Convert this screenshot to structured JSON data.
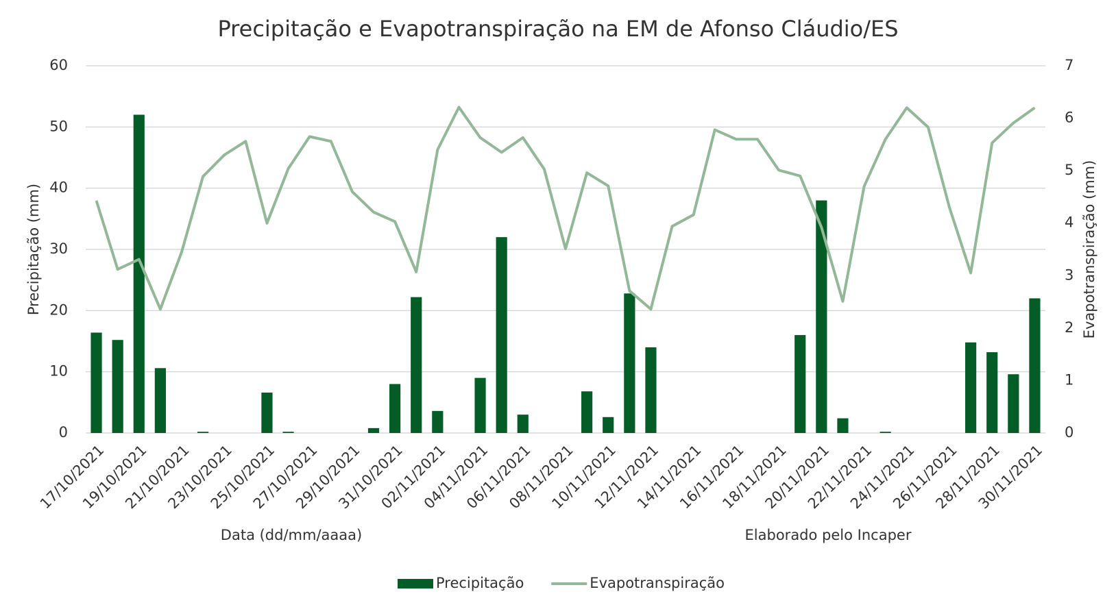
{
  "chart_data": {
    "type": "bar_line",
    "title": "Precipitação e Evapotranspiração na EM de Afonso Cláudio/ES",
    "x_label": "Data (dd/mm/aaaa)",
    "y_label": "Precipitação (mm)",
    "y2_label": "Evapotranspiração (mm)",
    "annotation": "Elaborado pelo Incaper",
    "categories": [
      "17/10/2021",
      null,
      "19/10/2021",
      null,
      "21/10/2021",
      null,
      "23/10/2021",
      null,
      "25/10/2021",
      null,
      "27/10/2021",
      null,
      "29/10/2021",
      null,
      "31/10/2021",
      null,
      "02/11/2021",
      null,
      "04/11/2021",
      null,
      "06/11/2021",
      null,
      "08/11/2021",
      null,
      "10/11/2021",
      null,
      "12/11/2021",
      null,
      "14/11/2021",
      null,
      "16/11/2021",
      null,
      "18/11/2021",
      null,
      "20/11/2021",
      null,
      "22/11/2021",
      null,
      "24/11/2021",
      null,
      "26/11/2021",
      null,
      "28/11/2021",
      null,
      "30/11/2021"
    ],
    "series": [
      {
        "name": "Precipitação",
        "type": "bar",
        "color": "#045d26",
        "values": [
          16.4,
          15.2,
          52,
          10.6,
          0,
          0.2,
          0,
          0,
          6.6,
          0.2,
          0,
          0,
          0,
          0.8,
          8,
          22.2,
          3.6,
          0,
          9,
          32,
          3,
          0,
          0,
          6.8,
          2.6,
          22.8,
          14,
          0,
          0,
          0,
          0,
          0,
          0,
          16,
          38,
          2.4,
          0,
          0.2,
          0,
          0,
          0,
          14.8,
          13.2,
          9.6,
          22
        ]
      },
      {
        "name": "Evapotranspiração",
        "type": "line",
        "axis": "y2",
        "color": "#92b898",
        "values": [
          4.43,
          3.12,
          3.31,
          2.36,
          3.45,
          4.89,
          5.3,
          5.56,
          4.0,
          5.04,
          5.65,
          5.56,
          4.6,
          4.21,
          4.03,
          3.07,
          5.4,
          6.21,
          5.63,
          5.35,
          5.63,
          5.03,
          3.51,
          4.96,
          4.71,
          2.71,
          2.36,
          3.94,
          4.16,
          5.78,
          5.6,
          5.6,
          5.01,
          4.9,
          3.92,
          2.51,
          4.7,
          5.6,
          6.2,
          5.83,
          4.3,
          3.05,
          5.53,
          5.91,
          6.2
        ]
      }
    ],
    "ylim": [
      0,
      60
    ],
    "yticks": [
      0,
      10,
      20,
      30,
      40,
      50,
      60
    ],
    "y2lim": [
      0,
      7
    ],
    "y2ticks": [
      0,
      1,
      2,
      3,
      4,
      5,
      6,
      7
    ],
    "grid": true,
    "legend": "bottom"
  }
}
